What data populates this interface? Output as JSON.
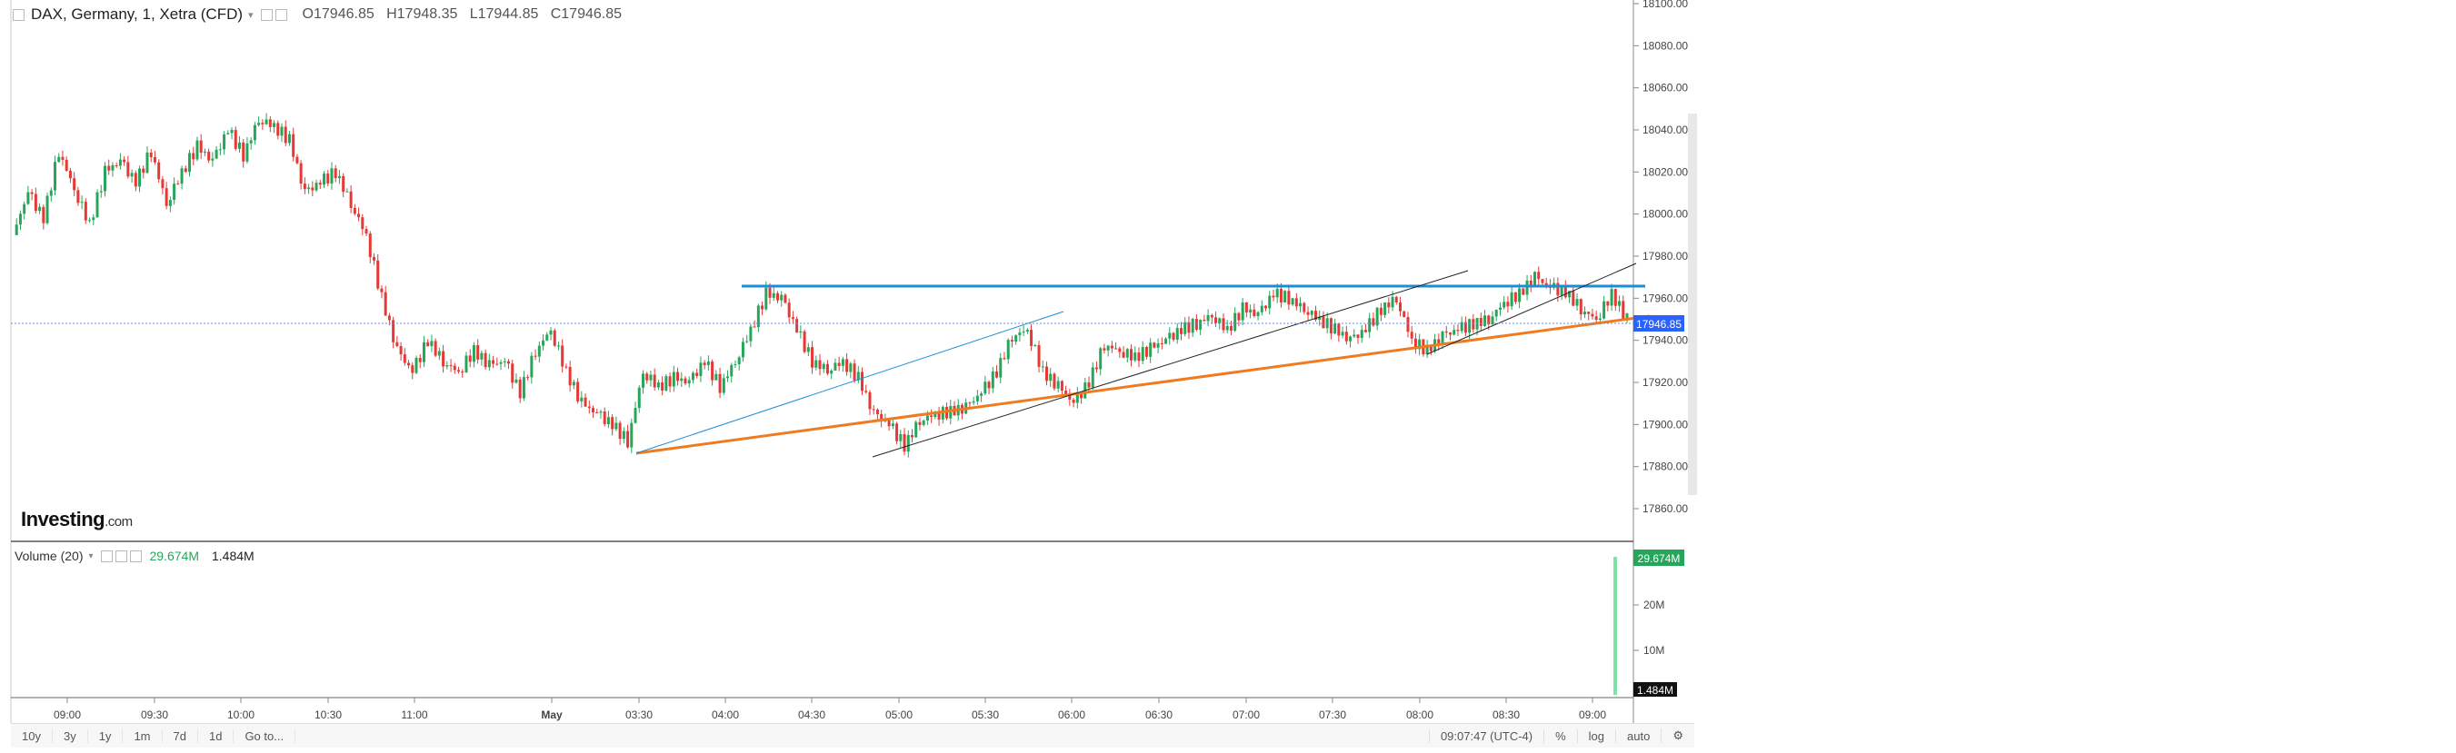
{
  "header": {
    "symbol_title": "DAX, Germany, 1, Xetra (CFD)",
    "ohlc": {
      "o_label": "O",
      "o": "17946.85",
      "h_label": "H",
      "h": "17948.35",
      "l_label": "L",
      "l": "17944.85",
      "c_label": "C",
      "c": "17946.85"
    }
  },
  "volume_pane": {
    "label": "Volume (20)",
    "value1": "29.674M",
    "value2": "1.484M"
  },
  "logo": {
    "main": "Investing",
    "suffix": ".com"
  },
  "price_axis": {
    "ticks": [
      "18100.00",
      "18080.00",
      "18060.00",
      "18040.00",
      "18020.00",
      "18000.00",
      "17980.00",
      "17960.00",
      "17940.00",
      "17920.00",
      "17900.00",
      "17880.00",
      "17860.00"
    ],
    "current_price_tag": "17946.85"
  },
  "volume_axis": {
    "ticks": [
      "20M",
      "10M"
    ],
    "top_tag": "29.674M",
    "bottom_tag": "1.484M"
  },
  "time_axis": {
    "ticks": [
      "09:00",
      "09:30",
      "10:00",
      "10:30",
      "11:00",
      "May",
      "03:30",
      "04:00",
      "04:30",
      "05:00",
      "05:30",
      "06:00",
      "06:30",
      "07:00",
      "07:30",
      "08:00",
      "08:30",
      "09:00"
    ]
  },
  "toolbar": {
    "ranges": [
      "10y",
      "3y",
      "1y",
      "1m",
      "7d",
      "1d",
      "Go to..."
    ],
    "clock": "09:07:47 (UTC-4)",
    "pct": "%",
    "log": "log",
    "auto": "auto",
    "settings_icon": "gear-icon"
  },
  "colors": {
    "accent_blue": "#1a8fd6",
    "orange": "#f07a1f",
    "green": "#26a65b",
    "red": "#e53935",
    "price_tag": "#2962ff"
  },
  "chart_data": {
    "type": "candlestick",
    "y_range": [
      17850,
      18100
    ],
    "x_categories": [
      "09:00",
      "09:30",
      "10:00",
      "10:30",
      "11:00",
      "May",
      "03:30",
      "04:00",
      "04:30",
      "05:00",
      "05:30",
      "06:00",
      "06:30",
      "07:00",
      "07:30",
      "08:00",
      "08:30",
      "09:00"
    ],
    "close_path": [
      [
        0,
        17990
      ],
      [
        1,
        18010
      ],
      [
        2,
        17998
      ],
      [
        3,
        18030
      ],
      [
        4,
        18012
      ],
      [
        5,
        17995
      ],
      [
        6,
        18020
      ],
      [
        7,
        18025
      ],
      [
        8,
        18015
      ],
      [
        9,
        18030
      ],
      [
        10,
        18005
      ],
      [
        11,
        18020
      ],
      [
        12,
        18032
      ],
      [
        13,
        18025
      ],
      [
        14,
        18040
      ],
      [
        15,
        18028
      ],
      [
        16,
        18045
      ],
      [
        17,
        18042
      ],
      [
        18,
        18035
      ],
      [
        19,
        18010
      ],
      [
        20,
        18015
      ],
      [
        21,
        18020
      ],
      [
        22,
        18005
      ],
      [
        23,
        17990
      ],
      [
        24,
        17960
      ],
      [
        25,
        17935
      ],
      [
        26,
        17925
      ],
      [
        27,
        17940
      ],
      [
        28,
        17930
      ],
      [
        29,
        17925
      ],
      [
        30,
        17935
      ],
      [
        31,
        17928
      ],
      [
        32,
        17930
      ],
      [
        33,
        17915
      ],
      [
        34,
        17935
      ],
      [
        35,
        17945
      ],
      [
        36,
        17925
      ],
      [
        37,
        17910
      ],
      [
        38,
        17905
      ],
      [
        39,
        17900
      ],
      [
        40,
        17892
      ],
      [
        41,
        17925
      ],
      [
        42,
        17918
      ],
      [
        43,
        17922
      ],
      [
        44,
        17920
      ],
      [
        45,
        17930
      ],
      [
        46,
        17918
      ],
      [
        47,
        17930
      ],
      [
        48,
        17945
      ],
      [
        49,
        17962
      ],
      [
        50,
        17960
      ],
      [
        51,
        17945
      ],
      [
        52,
        17930
      ],
      [
        53,
        17926
      ],
      [
        54,
        17930
      ],
      [
        55,
        17922
      ],
      [
        56,
        17905
      ],
      [
        57,
        17900
      ],
      [
        58,
        17890
      ],
      [
        59,
        17902
      ],
      [
        60,
        17905
      ],
      [
        61,
        17906
      ],
      [
        62,
        17908
      ],
      [
        63,
        17915
      ],
      [
        64,
        17925
      ],
      [
        65,
        17942
      ],
      [
        66,
        17945
      ],
      [
        67,
        17925
      ],
      [
        68,
        17918
      ],
      [
        69,
        17910
      ],
      [
        70,
        17920
      ],
      [
        71,
        17938
      ],
      [
        72,
        17935
      ],
      [
        73,
        17932
      ],
      [
        74,
        17936
      ],
      [
        75,
        17940
      ],
      [
        76,
        17945
      ],
      [
        77,
        17948
      ],
      [
        78,
        17952
      ],
      [
        79,
        17945
      ],
      [
        80,
        17955
      ],
      [
        81,
        17952
      ],
      [
        82,
        17962
      ],
      [
        83,
        17960
      ],
      [
        84,
        17955
      ],
      [
        85,
        17950
      ],
      [
        86,
        17945
      ],
      [
        87,
        17940
      ],
      [
        88,
        17945
      ],
      [
        89,
        17955
      ],
      [
        90,
        17960
      ],
      [
        91,
        17940
      ],
      [
        92,
        17935
      ],
      [
        93,
        17942
      ],
      [
        94,
        17945
      ],
      [
        95,
        17948
      ],
      [
        96,
        17950
      ],
      [
        97,
        17958
      ],
      [
        98,
        17962
      ],
      [
        99,
        17970
      ],
      [
        100,
        17965
      ],
      [
        101,
        17963
      ],
      [
        102,
        17955
      ],
      [
        103,
        17950
      ],
      [
        104,
        17962
      ],
      [
        105,
        17950
      ]
    ],
    "volume_last_bar": "29.674M",
    "horizontal_lines": [
      {
        "price": 17946.85,
        "style": "dotted"
      }
    ]
  }
}
